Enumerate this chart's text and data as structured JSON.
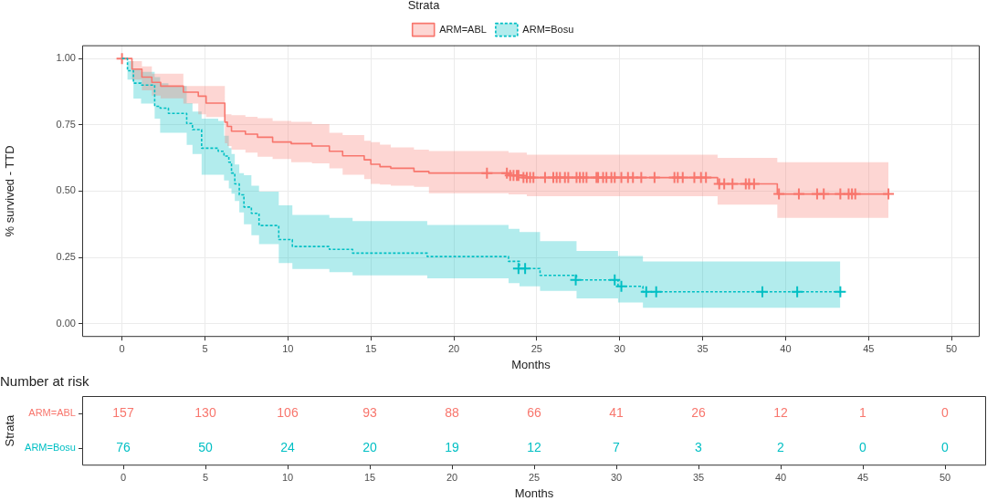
{
  "chart_data": [
    {
      "type": "step",
      "xlabel": "Months",
      "ylabel": "% survived - TTD",
      "legend_title": "Strata",
      "legend": "top",
      "grid": true,
      "xlim": [
        -2.4,
        51.7
      ],
      "xticks": [
        0,
        5,
        10,
        15,
        20,
        25,
        30,
        35,
        40,
        45,
        50
      ],
      "ylim": [
        -0.05,
        1.05
      ],
      "yticks": [
        {
          "value": 0,
          "label": "0.00"
        },
        {
          "value": 0.25,
          "label": "0.25"
        },
        {
          "value": 0.5,
          "label": "0.50"
        },
        {
          "value": 0.75,
          "label": "0.75"
        },
        {
          "value": 1,
          "label": "1.00"
        }
      ],
      "series": [
        {
          "name": "ARM=ABL",
          "color": "#f8766d",
          "line_style": "solid",
          "marker": "none",
          "x": [
            0,
            0.6,
            1.2,
            1.8,
            2.33,
            3.7,
            4.6,
            5.07,
            6.2,
            6.35,
            6.6,
            7.44,
            8.17,
            9.08,
            10.2,
            11.45,
            12.5,
            13.3,
            14.6,
            15.0,
            15.55,
            16.2,
            17.6,
            18.5,
            23.3,
            24.4,
            35.9,
            39.5,
            46.2
          ],
          "values": [
            1.0,
            0.96,
            0.93,
            0.91,
            0.896,
            0.873,
            0.858,
            0.832,
            0.76,
            0.744,
            0.726,
            0.715,
            0.703,
            0.685,
            0.679,
            0.67,
            0.65,
            0.633,
            0.618,
            0.601,
            0.592,
            0.586,
            0.574,
            0.568,
            0.559,
            0.551,
            0.527,
            0.489,
            0.489
          ],
          "lower": [
            1.0,
            0.92,
            0.88,
            0.86,
            0.85,
            0.83,
            0.79,
            0.779,
            0.68,
            0.67,
            0.656,
            0.645,
            0.63,
            0.621,
            0.609,
            0.605,
            0.586,
            0.562,
            0.545,
            0.527,
            0.525,
            0.52,
            0.516,
            0.492,
            0.488,
            0.481,
            0.449,
            0.399,
            0.399
          ],
          "upper": [
            1.0,
            0.99,
            0.97,
            0.943,
            0.943,
            0.896,
            0.896,
            0.896,
            0.79,
            0.79,
            0.786,
            0.78,
            0.775,
            0.765,
            0.761,
            0.753,
            0.72,
            0.711,
            0.69,
            0.685,
            0.675,
            0.665,
            0.656,
            0.651,
            0.645,
            0.637,
            0.625,
            0.609,
            0.609
          ]
        },
        {
          "name": "ARM=Bosu",
          "color": "#00bfc4",
          "line_style": "dashed",
          "marker": "none",
          "x": [
            0,
            0.33,
            0.69,
            1.15,
            1.97,
            2.3,
            2.8,
            3.9,
            4.25,
            4.8,
            5.8,
            6.15,
            6.44,
            6.6,
            6.8,
            7.07,
            7.35,
            7.8,
            8.26,
            9.45,
            10.27,
            12.5,
            13.9,
            18.4,
            23.3,
            23.96,
            25.2,
            27.4,
            29.9,
            31.4,
            43.3
          ],
          "values": [
            1.0,
            0.954,
            0.907,
            0.9,
            0.82,
            0.813,
            0.793,
            0.755,
            0.732,
            0.662,
            0.65,
            0.632,
            0.609,
            0.568,
            0.527,
            0.486,
            0.44,
            0.416,
            0.37,
            0.317,
            0.291,
            0.28,
            0.266,
            0.253,
            0.235,
            0.208,
            0.182,
            0.165,
            0.141,
            0.12,
            0.12
          ],
          "lower": [
            1.0,
            0.92,
            0.849,
            0.83,
            0.773,
            0.72,
            0.72,
            0.674,
            0.64,
            0.562,
            0.562,
            0.54,
            0.51,
            0.49,
            0.463,
            0.42,
            0.375,
            0.334,
            0.3,
            0.229,
            0.206,
            0.194,
            0.182,
            0.171,
            0.153,
            0.141,
            0.124,
            0.095,
            0.08,
            0.06,
            0.06
          ],
          "upper": [
            1.0,
            0.99,
            0.96,
            0.95,
            0.93,
            0.907,
            0.896,
            0.832,
            0.8,
            0.773,
            0.765,
            0.709,
            0.662,
            0.64,
            0.6,
            0.568,
            0.56,
            0.52,
            0.498,
            0.446,
            0.41,
            0.399,
            0.387,
            0.372,
            0.358,
            0.346,
            0.311,
            0.274,
            0.255,
            0.235,
            0.235
          ]
        },
        {
          "type": "scatter",
          "color": "#f8766d",
          "marker": "cross",
          "x": [
            0,
            22.0,
            23.2,
            23.4,
            23.6,
            23.8,
            23.9,
            24.2,
            24.4,
            24.6,
            24.8,
            25.5,
            26.0,
            26.2,
            26.4,
            26.7,
            26.9,
            27.4,
            27.6,
            27.8,
            28.0,
            28.6,
            28.7,
            29.0,
            29.2,
            29.5,
            29.7,
            30.1,
            30.5,
            30.8,
            31.3,
            32.1,
            33.3,
            33.5,
            33.8,
            34.5,
            34.9,
            35.2,
            36.0,
            36.3,
            36.8,
            37.6,
            37.8,
            38.1,
            39.6,
            40.8,
            41.9,
            42.3,
            43.3,
            43.8,
            44.0,
            44.2,
            46.2
          ],
          "values": [
            1.0,
            0.568,
            0.568,
            0.559,
            0.559,
            0.559,
            0.559,
            0.551,
            0.551,
            0.551,
            0.551,
            0.551,
            0.551,
            0.551,
            0.551,
            0.551,
            0.551,
            0.551,
            0.551,
            0.551,
            0.551,
            0.551,
            0.551,
            0.551,
            0.551,
            0.551,
            0.551,
            0.551,
            0.551,
            0.551,
            0.551,
            0.551,
            0.551,
            0.551,
            0.551,
            0.551,
            0.551,
            0.551,
            0.527,
            0.527,
            0.527,
            0.527,
            0.527,
            0.527,
            0.489,
            0.489,
            0.489,
            0.489,
            0.489,
            0.489,
            0.489,
            0.489,
            0.489
          ]
        },
        {
          "type": "scatter",
          "color": "#00bfc4",
          "marker": "cross",
          "x": [
            23.9,
            24.3,
            27.35,
            29.7,
            30.1,
            31.6,
            32.2,
            38.6,
            40.7,
            43.3
          ],
          "values": [
            0.208,
            0.208,
            0.165,
            0.165,
            0.141,
            0.12,
            0.12,
            0.12,
            0.12,
            0.12
          ]
        }
      ]
    },
    {
      "type": "heatmap",
      "title": "Number at risk",
      "xlabel": "Months",
      "ylabel": "Strata",
      "data_labels": true,
      "categories": [
        "0",
        "5",
        "10",
        "15",
        "20",
        "25",
        "30",
        "35",
        "40",
        "45",
        "50"
      ],
      "y_categories": [
        "ARM=ABL",
        "ARM=Bosu"
      ],
      "colors": [
        "#f8766d",
        "#00bfc4"
      ],
      "cells": [
        [
          157,
          130,
          106,
          93,
          88,
          66,
          41,
          26,
          12,
          1,
          0
        ],
        [
          76,
          50,
          24,
          20,
          19,
          12,
          7,
          3,
          2,
          0,
          0
        ]
      ]
    }
  ]
}
